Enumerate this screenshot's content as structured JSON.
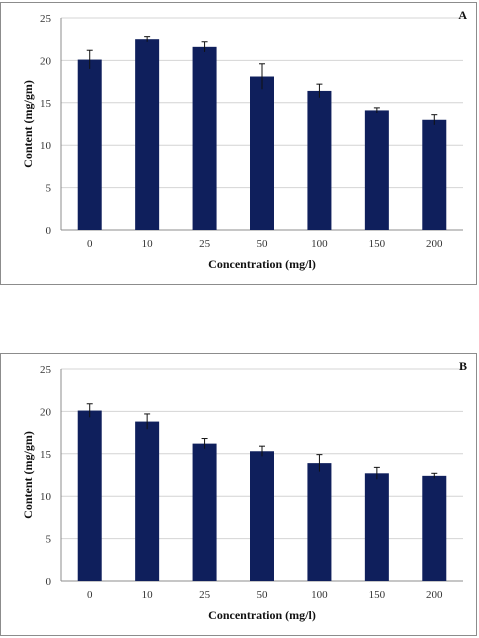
{
  "chart_data": [
    {
      "panel_label": "A",
      "type": "bar",
      "categories": [
        "0",
        "10",
        "25",
        "50",
        "100",
        "150",
        "200"
      ],
      "values": [
        20.1,
        22.5,
        21.6,
        18.1,
        16.4,
        14.1,
        13.0
      ],
      "errors": [
        1.1,
        0.3,
        0.6,
        1.5,
        0.8,
        0.3,
        0.6
      ],
      "xlabel": "Concentration (mg/l)",
      "ylabel": "Content (mg/gm)",
      "ylim": [
        0,
        25
      ],
      "yticks": [
        "0",
        "5",
        "10",
        "15",
        "20",
        "25"
      ],
      "grid": true,
      "colors": {
        "bar": "#0f1f5c",
        "error_bar": "#111111",
        "grid": "#d4d4d4",
        "axis": "#8c8c8c"
      }
    },
    {
      "panel_label": "B",
      "type": "bar",
      "categories": [
        "0",
        "10",
        "25",
        "50",
        "100",
        "150",
        "200"
      ],
      "values": [
        20.1,
        18.8,
        16.2,
        15.3,
        13.9,
        12.7,
        12.4
      ],
      "errors": [
        0.8,
        0.9,
        0.6,
        0.6,
        1.0,
        0.7,
        0.3
      ],
      "xlabel": "Concentration (mg/l)",
      "ylabel": "Content (mg/gm)",
      "ylim": [
        0,
        25
      ],
      "yticks": [
        "0",
        "5",
        "10",
        "15",
        "20",
        "25"
      ],
      "grid": true,
      "colors": {
        "bar": "#0f1f5c",
        "error_bar": "#111111",
        "grid": "#d4d4d4",
        "axis": "#8c8c8c"
      }
    }
  ]
}
